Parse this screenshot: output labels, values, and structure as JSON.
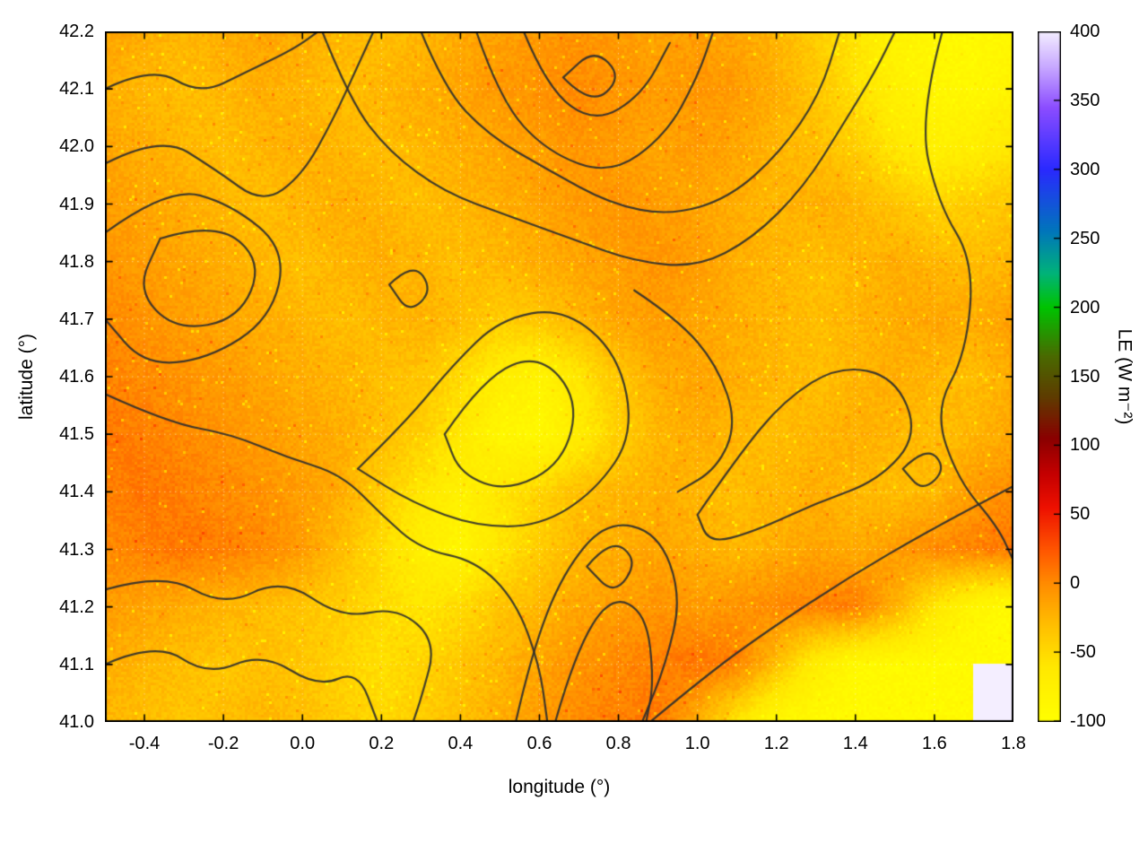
{
  "figure": {
    "xlabel": "longitude (°)",
    "ylabel": "latitude (°)",
    "colorbar_label": "LE (W m⁻²)",
    "background_color": "#ffffff",
    "plot_border_color": "#000000",
    "contour_color": "#2d2d2d"
  },
  "chart_data": {
    "type": "heatmap",
    "title": "",
    "xlabel": "longitude (°)",
    "ylabel": "latitude (°)",
    "xlim": [
      -0.5,
      1.8
    ],
    "ylim": [
      41.0,
      42.2
    ],
    "grid_lines": "dotted",
    "legend": "none",
    "xticks": {
      "values": [
        -0.4,
        -0.2,
        0.0,
        0.2,
        0.4,
        0.6,
        0.8,
        1.0,
        1.2,
        1.4,
        1.6,
        1.8
      ],
      "labels": [
        "-0.4",
        "-0.2",
        "0.0",
        "0.2",
        "0.4",
        "0.6",
        "0.8",
        "1.0",
        "1.2",
        "1.4",
        "1.6",
        "1.8"
      ]
    },
    "yticks": {
      "values": [
        41.0,
        41.1,
        41.2,
        41.3,
        41.4,
        41.5,
        41.6,
        41.7,
        41.8,
        41.9,
        42.0,
        42.1,
        42.2
      ],
      "labels": [
        "41.0",
        "41.1",
        "41.2",
        "41.3",
        "41.4",
        "41.5",
        "41.6",
        "41.7",
        "41.8",
        "41.9",
        "42.0",
        "42.1",
        "42.2"
      ]
    },
    "colorbar": {
      "label": "LE (W m⁻²)",
      "min": -100,
      "max": 400,
      "tick_values": [
        400,
        350,
        300,
        250,
        200,
        150,
        100,
        50,
        0,
        -50,
        -100
      ],
      "tick_labels": [
        "400",
        "350",
        "300",
        "250",
        "200",
        "150",
        "100",
        "50",
        "0",
        "-50",
        "-100"
      ],
      "stops": [
        [
          -100,
          "#ffff00"
        ],
        [
          -60,
          "#ffe800"
        ],
        [
          -30,
          "#ffbf00"
        ],
        [
          0,
          "#ff8c00"
        ],
        [
          25,
          "#ff5500"
        ],
        [
          55,
          "#ee1100"
        ],
        [
          80,
          "#c40000"
        ],
        [
          105,
          "#8b0000"
        ],
        [
          135,
          "#5f3c00"
        ],
        [
          165,
          "#4a6a00"
        ],
        [
          200,
          "#00c400"
        ],
        [
          225,
          "#00b37a"
        ],
        [
          255,
          "#0077bb"
        ],
        [
          300,
          "#2a2aff"
        ],
        [
          345,
          "#8c4dff"
        ],
        [
          375,
          "#c9aaff"
        ],
        [
          400,
          "#f4eeff"
        ]
      ]
    },
    "grid": {
      "units": "W m⁻²",
      "lon": [
        -0.5,
        -0.4,
        -0.3,
        -0.2,
        -0.1,
        0.0,
        0.1,
        0.2,
        0.3,
        0.4,
        0.5,
        0.6,
        0.7,
        0.8,
        0.9,
        1.0,
        1.1,
        1.2,
        1.3,
        1.4,
        1.5,
        1.6,
        1.7,
        1.8
      ],
      "lat": [
        42.2,
        42.1,
        42.0,
        41.9,
        41.8,
        41.7,
        41.6,
        41.5,
        41.4,
        41.3,
        41.2,
        41.1,
        41.0
      ],
      "values": [
        [
          -15,
          -20,
          -25,
          -20,
          -15,
          -20,
          -25,
          -30,
          -25,
          -18,
          -12,
          -8,
          -5,
          -10,
          -14,
          -10,
          -15,
          -25,
          -40,
          -60,
          -80,
          -90,
          -92,
          -88
        ],
        [
          -20,
          -25,
          -30,
          -25,
          -20,
          -25,
          -30,
          -25,
          -20,
          -14,
          -8,
          -4,
          0,
          -5,
          -10,
          -6,
          -10,
          -20,
          -35,
          -55,
          -75,
          -85,
          -90,
          -80
        ],
        [
          -15,
          -20,
          -25,
          -30,
          -25,
          -20,
          -25,
          -30,
          -25,
          -20,
          -15,
          -10,
          -6,
          -10,
          -15,
          -10,
          -15,
          -25,
          -30,
          -40,
          -60,
          -75,
          -70,
          -60
        ],
        [
          -10,
          -15,
          -20,
          -25,
          -30,
          -25,
          -20,
          -25,
          -30,
          -25,
          -20,
          -15,
          -10,
          -6,
          -10,
          -15,
          -20,
          -25,
          -20,
          -25,
          -35,
          -45,
          -40,
          -35
        ],
        [
          -6,
          -10,
          -15,
          -20,
          -25,
          -30,
          -25,
          -20,
          -25,
          -30,
          -25,
          -20,
          -15,
          -10,
          -6,
          -10,
          -20,
          -25,
          -30,
          -25,
          -20,
          -25,
          -30,
          -25
        ],
        [
          0,
          -5,
          -10,
          -15,
          -20,
          -25,
          -30,
          -25,
          -22,
          -30,
          -40,
          -35,
          -25,
          -15,
          -10,
          -15,
          -20,
          -25,
          -30,
          -25,
          -20,
          -15,
          -20,
          -10
        ],
        [
          5,
          0,
          -5,
          -10,
          -15,
          -20,
          -25,
          -30,
          -35,
          -50,
          -70,
          -80,
          -60,
          -35,
          -20,
          -15,
          -20,
          -25,
          -30,
          -25,
          -20,
          -25,
          -30,
          -20
        ],
        [
          10,
          5,
          0,
          -5,
          -10,
          -15,
          -20,
          -30,
          -42,
          -62,
          -85,
          -90,
          -70,
          -42,
          -25,
          -20,
          -25,
          -30,
          -25,
          -20,
          -25,
          -30,
          -25,
          -15
        ],
        [
          5,
          10,
          5,
          0,
          -5,
          -10,
          -20,
          -40,
          -60,
          -75,
          -60,
          -45,
          -30,
          -25,
          -20,
          -25,
          -30,
          -25,
          -20,
          -25,
          -30,
          -25,
          -10,
          0
        ],
        [
          0,
          5,
          10,
          5,
          0,
          -10,
          -30,
          -52,
          -72,
          -85,
          -60,
          -40,
          -25,
          -20,
          -15,
          -20,
          -25,
          -20,
          -15,
          -20,
          -10,
          0,
          5,
          10
        ],
        [
          -10,
          -15,
          -20,
          -25,
          -30,
          -35,
          -40,
          -50,
          -60,
          -50,
          -35,
          -25,
          -15,
          -10,
          -5,
          -10,
          -5,
          0,
          5,
          8,
          -20,
          -60,
          -85,
          -92
        ],
        [
          -20,
          -25,
          -30,
          -35,
          -30,
          -35,
          -45,
          -55,
          -45,
          -35,
          -25,
          -15,
          -5,
          0,
          5,
          10,
          5,
          -30,
          -70,
          -90,
          -92,
          -92,
          -92,
          -92
        ],
        [
          -25,
          -30,
          -35,
          -30,
          -25,
          -30,
          -40,
          -50,
          -40,
          -30,
          -20,
          -10,
          0,
          5,
          10,
          -20,
          -60,
          -90,
          -92,
          -92,
          -92,
          -92,
          -92
        ]
      ]
    },
    "contours": {
      "color": "#2d2d2d",
      "paths": [
        [
          [
            -0.5,
            41.97
          ],
          [
            -0.36,
            42.02
          ],
          [
            -0.22,
            41.96
          ],
          [
            -0.1,
            41.9
          ],
          [
            0.0,
            41.95
          ],
          [
            0.08,
            42.05
          ],
          [
            0.14,
            42.14
          ],
          [
            0.18,
            42.2
          ]
        ],
        [
          [
            -0.5,
            42.1
          ],
          [
            -0.38,
            42.14
          ],
          [
            -0.26,
            42.09
          ],
          [
            -0.14,
            42.13
          ],
          [
            -0.02,
            42.17
          ],
          [
            0.04,
            42.2
          ]
        ],
        [
          [
            -0.5,
            41.85
          ],
          [
            -0.34,
            41.93
          ],
          [
            -0.18,
            41.9
          ],
          [
            -0.04,
            41.82
          ],
          [
            -0.08,
            41.7
          ],
          [
            -0.24,
            41.63
          ],
          [
            -0.4,
            41.62
          ],
          [
            -0.5,
            41.7
          ]
        ],
        [
          [
            -0.36,
            41.84
          ],
          [
            -0.22,
            41.87
          ],
          [
            -0.1,
            41.8
          ],
          [
            -0.16,
            41.7
          ],
          [
            -0.32,
            41.68
          ],
          [
            -0.42,
            41.75
          ],
          [
            -0.36,
            41.84
          ]
        ],
        [
          [
            -0.5,
            41.57
          ],
          [
            -0.34,
            41.52
          ],
          [
            -0.18,
            41.5
          ],
          [
            -0.04,
            41.46
          ],
          [
            0.1,
            41.43
          ],
          [
            0.2,
            41.36
          ],
          [
            0.3,
            41.3
          ],
          [
            0.44,
            41.28
          ],
          [
            0.54,
            41.21
          ],
          [
            0.6,
            41.1
          ],
          [
            0.62,
            41.0
          ]
        ],
        [
          [
            0.14,
            41.44
          ],
          [
            0.26,
            41.52
          ],
          [
            0.38,
            41.62
          ],
          [
            0.5,
            41.7
          ],
          [
            0.66,
            41.72
          ],
          [
            0.8,
            41.64
          ],
          [
            0.84,
            41.5
          ],
          [
            0.74,
            41.4
          ],
          [
            0.6,
            41.34
          ],
          [
            0.44,
            41.34
          ],
          [
            0.28,
            41.38
          ],
          [
            0.14,
            41.44
          ]
        ],
        [
          [
            0.36,
            41.5
          ],
          [
            0.46,
            41.6
          ],
          [
            0.6,
            41.64
          ],
          [
            0.7,
            41.56
          ],
          [
            0.66,
            41.45
          ],
          [
            0.52,
            41.4
          ],
          [
            0.4,
            41.43
          ],
          [
            0.36,
            41.5
          ]
        ],
        [
          [
            0.44,
            42.2
          ],
          [
            0.5,
            42.08
          ],
          [
            0.62,
            41.99
          ],
          [
            0.78,
            41.95
          ],
          [
            0.92,
            42.02
          ],
          [
            1.0,
            42.12
          ],
          [
            1.04,
            42.2
          ]
        ],
        [
          [
            0.56,
            42.2
          ],
          [
            0.62,
            42.1
          ],
          [
            0.74,
            42.04
          ],
          [
            0.86,
            42.09
          ],
          [
            0.93,
            42.18
          ]
        ],
        [
          [
            0.66,
            42.12
          ],
          [
            0.73,
            42.07
          ],
          [
            0.81,
            42.12
          ],
          [
            0.74,
            42.17
          ],
          [
            0.66,
            42.12
          ]
        ],
        [
          [
            0.05,
            42.2
          ],
          [
            0.12,
            42.08
          ],
          [
            0.22,
            41.99
          ],
          [
            0.36,
            41.92
          ],
          [
            0.52,
            41.88
          ],
          [
            0.68,
            41.84
          ],
          [
            0.84,
            41.8
          ],
          [
            1.0,
            41.79
          ],
          [
            1.14,
            41.84
          ],
          [
            1.27,
            41.93
          ],
          [
            1.37,
            42.04
          ],
          [
            1.45,
            42.13
          ],
          [
            1.5,
            42.2
          ]
        ],
        [
          [
            0.3,
            42.2
          ],
          [
            0.36,
            42.1
          ],
          [
            0.47,
            42.02
          ],
          [
            0.62,
            41.96
          ],
          [
            0.78,
            41.9
          ],
          [
            0.93,
            41.88
          ],
          [
            1.08,
            41.91
          ],
          [
            1.21,
            41.99
          ],
          [
            1.31,
            42.09
          ],
          [
            1.36,
            42.2
          ]
        ],
        [
          [
            1.62,
            42.2
          ],
          [
            1.56,
            42.05
          ],
          [
            1.61,
            41.9
          ],
          [
            1.7,
            41.8
          ],
          [
            1.68,
            41.64
          ],
          [
            1.6,
            41.54
          ],
          [
            1.66,
            41.42
          ],
          [
            1.76,
            41.34
          ],
          [
            1.8,
            41.28
          ]
        ],
        [
          [
            0.88,
            41.0
          ],
          [
            1.02,
            41.08
          ],
          [
            1.18,
            41.16
          ],
          [
            1.38,
            41.25
          ],
          [
            1.58,
            41.33
          ],
          [
            1.8,
            41.41
          ]
        ],
        [
          [
            -0.5,
            41.23
          ],
          [
            -0.35,
            41.26
          ],
          [
            -0.2,
            41.2
          ],
          [
            -0.05,
            41.25
          ],
          [
            0.1,
            41.18
          ],
          [
            0.24,
            41.2
          ],
          [
            0.34,
            41.14
          ],
          [
            0.3,
            41.04
          ],
          [
            0.28,
            41.0
          ]
        ],
        [
          [
            -0.5,
            41.1
          ],
          [
            -0.37,
            41.14
          ],
          [
            -0.24,
            41.08
          ],
          [
            -0.1,
            41.12
          ],
          [
            0.04,
            41.06
          ],
          [
            0.14,
            41.09
          ],
          [
            0.19,
            41.0
          ]
        ],
        [
          [
            0.54,
            41.0
          ],
          [
            0.58,
            41.12
          ],
          [
            0.66,
            41.26
          ],
          [
            0.77,
            41.35
          ],
          [
            0.9,
            41.33
          ],
          [
            0.96,
            41.22
          ],
          [
            0.92,
            41.1
          ],
          [
            0.86,
            41.0
          ]
        ],
        [
          [
            0.64,
            41.0
          ],
          [
            0.69,
            41.12
          ],
          [
            0.78,
            41.22
          ],
          [
            0.87,
            41.19
          ],
          [
            0.89,
            41.07
          ],
          [
            0.87,
            41.0
          ]
        ],
        [
          [
            0.72,
            41.27
          ],
          [
            0.78,
            41.32
          ],
          [
            0.85,
            41.28
          ],
          [
            0.79,
            41.22
          ],
          [
            0.72,
            41.27
          ]
        ],
        [
          [
            1.0,
            41.36
          ],
          [
            1.1,
            41.46
          ],
          [
            1.22,
            41.56
          ],
          [
            1.36,
            41.62
          ],
          [
            1.5,
            41.6
          ],
          [
            1.56,
            41.5
          ],
          [
            1.46,
            41.42
          ],
          [
            1.3,
            41.38
          ],
          [
            1.14,
            41.33
          ],
          [
            1.03,
            41.31
          ],
          [
            1.0,
            41.36
          ]
        ],
        [
          [
            0.22,
            41.76
          ],
          [
            0.28,
            41.8
          ],
          [
            0.33,
            41.75
          ],
          [
            0.27,
            41.71
          ],
          [
            0.22,
            41.76
          ]
        ],
        [
          [
            1.52,
            41.44
          ],
          [
            1.58,
            41.48
          ],
          [
            1.63,
            41.44
          ],
          [
            1.57,
            41.4
          ],
          [
            1.52,
            41.44
          ]
        ],
        [
          [
            0.84,
            41.75
          ],
          [
            0.95,
            41.7
          ],
          [
            1.05,
            41.62
          ],
          [
            1.1,
            41.52
          ],
          [
            1.05,
            41.44
          ],
          [
            0.95,
            41.4
          ]
        ]
      ]
    }
  }
}
